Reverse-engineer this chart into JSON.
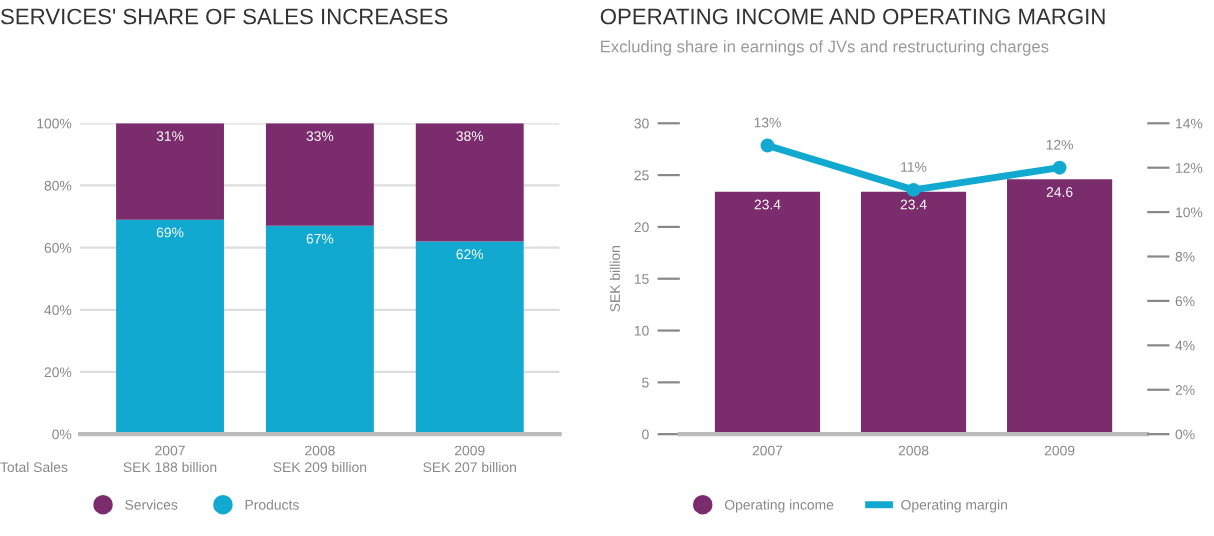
{
  "chart_data": [
    {
      "type": "bar",
      "title": "SERVICES' SHARE OF SALES INCREASES",
      "categories": [
        "2007",
        "2008",
        "2009"
      ],
      "stacked": true,
      "series": [
        {
          "name": "Products",
          "color": "#12a9d1",
          "values": [
            69,
            67,
            62
          ],
          "value_labels": [
            "69%",
            "67%",
            "62%"
          ]
        },
        {
          "name": "Services",
          "color": "#7a2c6c",
          "values": [
            31,
            33,
            38
          ],
          "value_labels": [
            "31%",
            "33%",
            "38%"
          ]
        }
      ],
      "ylim": [
        0,
        100
      ],
      "yticks": [
        {
          "value": 0,
          "label": "0%"
        },
        {
          "value": 20,
          "label": "20%"
        },
        {
          "value": 40,
          "label": "40%"
        },
        {
          "value": 60,
          "label": "60%"
        },
        {
          "value": 80,
          "label": "80%"
        },
        {
          "value": 100,
          "label": "100%"
        }
      ],
      "grid": "y",
      "legend": "bottom",
      "annotations": [
        "Total Sales",
        "SEK 188 billion",
        "SEK 209 billion",
        "SEK 207 billion"
      ]
    },
    {
      "type": "bar",
      "title": "OPERATING INCOME AND OPERATING MARGIN",
      "subtitle": "Excluding share in earnings of JVs and restructuring charges",
      "categories": [
        "2007",
        "2008",
        "2009"
      ],
      "ylabel": "SEK billion",
      "series": [
        {
          "name": "Operating income",
          "color": "#7a2c6c",
          "values": [
            23.4,
            23.4,
            24.6
          ]
        },
        {
          "name": "Operating margin",
          "type": "line",
          "axis": "y2",
          "color": "#12a9d1",
          "values": [
            13,
            11,
            12
          ],
          "value_labels": [
            "13%",
            "11%",
            "12%"
          ],
          "marker": "circle"
        }
      ],
      "data_labels": true,
      "ylim": [
        0,
        30
      ],
      "yticks": [
        0,
        5,
        10,
        15,
        20,
        25,
        30
      ],
      "y2lim": [
        0,
        14
      ],
      "y2ticks": [
        {
          "value": 0,
          "label": "0%"
        },
        {
          "value": 2,
          "label": "2%"
        },
        {
          "value": 4,
          "label": "4%"
        },
        {
          "value": 6,
          "label": "6%"
        },
        {
          "value": 8,
          "label": "8%"
        },
        {
          "value": 10,
          "label": "10%"
        },
        {
          "value": 12,
          "label": "12%"
        },
        {
          "value": 14,
          "label": "14%"
        }
      ],
      "grid": false,
      "legend": "bottom"
    }
  ]
}
